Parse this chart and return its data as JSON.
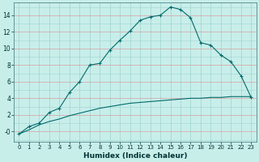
{
  "xlabel": "Humidex (Indice chaleur)",
  "background_color": "#c8eeea",
  "grid_color_major": "#d4a0a0",
  "grid_color_minor": "#9dd4ce",
  "line_color": "#006b6b",
  "xlim": [
    -0.5,
    23.5
  ],
  "ylim": [
    -1.2,
    15.5
  ],
  "x_ticks": [
    0,
    1,
    2,
    3,
    4,
    5,
    6,
    7,
    8,
    9,
    10,
    11,
    12,
    13,
    14,
    15,
    16,
    17,
    18,
    19,
    20,
    21,
    22,
    23
  ],
  "y_ticks": [
    0,
    2,
    4,
    6,
    8,
    10,
    12,
    14
  ],
  "y_tick_labels": [
    "-0",
    "2",
    "4",
    "6",
    "8",
    "10",
    "12",
    "14"
  ],
  "curve1_x": [
    0,
    1,
    2,
    3,
    4,
    5,
    6,
    7,
    8,
    9,
    10,
    11,
    12,
    13,
    14,
    15,
    16,
    17,
    18,
    19,
    20,
    21,
    22,
    23
  ],
  "curve1_y": [
    -0.3,
    0.6,
    1.0,
    2.3,
    2.8,
    4.7,
    6.0,
    8.0,
    8.2,
    9.8,
    11.0,
    12.1,
    13.4,
    13.8,
    14.0,
    15.0,
    14.7,
    13.7,
    10.7,
    10.4,
    9.2,
    8.4,
    6.7,
    4.1
  ],
  "curve2_x": [
    0,
    1,
    2,
    3,
    4,
    5,
    6,
    7,
    8,
    9,
    10,
    11,
    12,
    13,
    14,
    15,
    16,
    17,
    18,
    19,
    20,
    21,
    22,
    23
  ],
  "curve2_y": [
    -0.3,
    0.2,
    0.8,
    1.2,
    1.5,
    1.9,
    2.2,
    2.5,
    2.8,
    3.0,
    3.2,
    3.4,
    3.5,
    3.6,
    3.7,
    3.8,
    3.9,
    4.0,
    4.0,
    4.1,
    4.1,
    4.2,
    4.2,
    4.2
  ]
}
